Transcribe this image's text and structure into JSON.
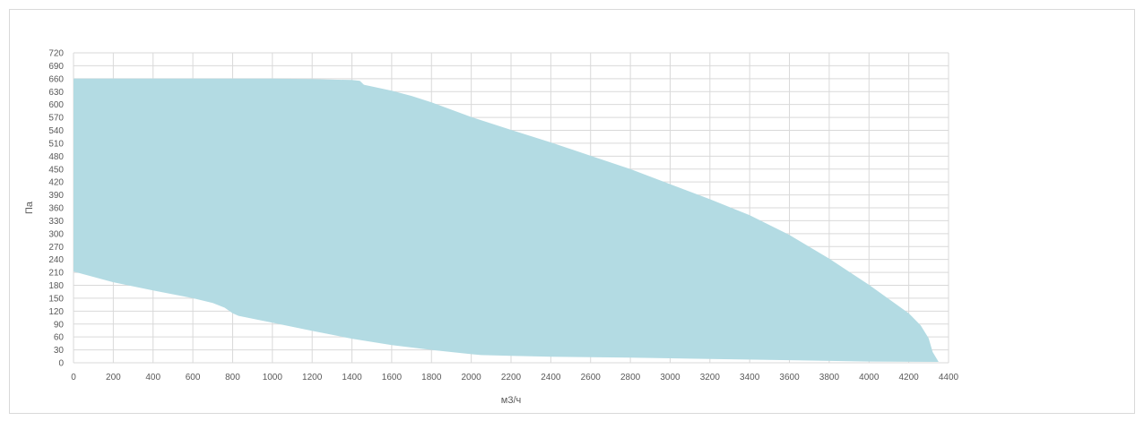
{
  "chart_data": {
    "type": "area",
    "title": "",
    "xlabel": "м3/ч",
    "ylabel": "Па",
    "xlim": [
      0,
      4400
    ],
    "ylim": [
      0,
      720
    ],
    "x_ticks": [
      0,
      200,
      400,
      600,
      800,
      1000,
      1200,
      1400,
      1600,
      1800,
      2000,
      2200,
      2400,
      2600,
      2800,
      3000,
      3200,
      3400,
      3600,
      3800,
      4000,
      4200,
      4400
    ],
    "y_ticks": [
      0,
      30,
      60,
      90,
      120,
      150,
      180,
      210,
      240,
      270,
      300,
      330,
      360,
      390,
      420,
      450,
      480,
      510,
      540,
      570,
      600,
      630,
      660,
      690,
      720
    ],
    "grid": true,
    "legend": "none",
    "series": [
      {
        "fill_color": "#b3dbe3",
        "upper_boundary": [
          [
            0,
            660
          ],
          [
            200,
            660
          ],
          [
            600,
            660
          ],
          [
            1000,
            660
          ],
          [
            1200,
            659
          ],
          [
            1400,
            657
          ],
          [
            1440,
            655
          ],
          [
            1460,
            646
          ],
          [
            1600,
            632
          ],
          [
            1700,
            620
          ],
          [
            1800,
            605
          ],
          [
            2000,
            571
          ],
          [
            2200,
            541
          ],
          [
            2400,
            512
          ],
          [
            2600,
            481
          ],
          [
            2800,
            450
          ],
          [
            3000,
            415
          ],
          [
            3200,
            380
          ],
          [
            3400,
            343
          ],
          [
            3600,
            297
          ],
          [
            3800,
            242
          ],
          [
            4000,
            181
          ],
          [
            4200,
            115
          ],
          [
            4260,
            87
          ],
          [
            4300,
            57
          ],
          [
            4320,
            25
          ],
          [
            4350,
            2
          ]
        ],
        "lower_boundary": [
          [
            0,
            212
          ],
          [
            200,
            187
          ],
          [
            400,
            168
          ],
          [
            600,
            150
          ],
          [
            700,
            139
          ],
          [
            760,
            128
          ],
          [
            800,
            115
          ],
          [
            830,
            109
          ],
          [
            1000,
            93
          ],
          [
            1200,
            74
          ],
          [
            1400,
            56
          ],
          [
            1600,
            41
          ],
          [
            1800,
            30
          ],
          [
            2000,
            20
          ],
          [
            2050,
            18
          ],
          [
            2200,
            16
          ],
          [
            2400,
            14
          ],
          [
            2800,
            12
          ],
          [
            3200,
            9
          ],
          [
            3600,
            6
          ],
          [
            4000,
            3
          ],
          [
            4350,
            2
          ]
        ]
      }
    ]
  }
}
